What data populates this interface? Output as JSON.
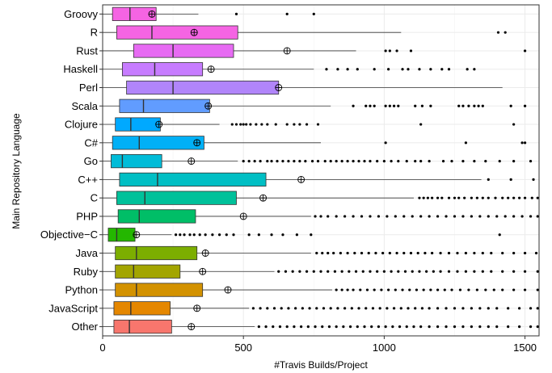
{
  "chart_data": {
    "type": "boxplot",
    "orientation": "horizontal",
    "xlabel": "#Travis Builds/Project",
    "ylabel": "Main Repository Language",
    "xlim": [
      0,
      1550
    ],
    "xticks": [
      0,
      500,
      1000,
      1500
    ],
    "grid": true,
    "legend": "none",
    "mean_marker": "circled plus",
    "categories": [
      "Groovy",
      "R",
      "Rust",
      "Haskell",
      "Perl",
      "Scala",
      "Clojure",
      "C#",
      "Go",
      "C++",
      "C",
      "PHP",
      "Objective−C",
      "Java",
      "Ruby",
      "Python",
      "JavaScript",
      "Other"
    ],
    "series": [
      {
        "category": "Groovy",
        "color": "#f564e3",
        "q1": 35,
        "median": 97,
        "q3": 190,
        "whisker_low": 0,
        "whisker_high": 340,
        "mean": 175,
        "outliers": [
          475,
          655,
          750
        ]
      },
      {
        "category": "R",
        "color": "#f564e3",
        "q1": 50,
        "median": 175,
        "q3": 480,
        "whisker_low": 0,
        "whisker_high": 1060,
        "mean": 325,
        "outliers": [
          1405,
          1430
        ]
      },
      {
        "category": "Rust",
        "color": "#e76bf3",
        "q1": 110,
        "median": 250,
        "q3": 465,
        "whisker_low": 0,
        "whisker_high": 900,
        "mean": 655,
        "outliers": [
          1005,
          1020,
          1045,
          1095,
          1500
        ]
      },
      {
        "category": "Haskell",
        "color": "#c77cff",
        "q1": 70,
        "median": 185,
        "q3": 355,
        "whisker_low": 0,
        "whisker_high": 750,
        "mean": 385,
        "outliers": [
          795,
          835,
          870,
          905,
          965,
          1015,
          1065,
          1085,
          1125,
          1165,
          1205,
          1230,
          1295,
          1320
        ]
      },
      {
        "category": "Perl",
        "color": "#b185fa",
        "q1": 85,
        "median": 250,
        "q3": 625,
        "whisker_low": 0,
        "whisker_high": 1420,
        "mean": 625,
        "outliers": []
      },
      {
        "category": "Scala",
        "color": "#619cff",
        "q1": 60,
        "median": 145,
        "q3": 380,
        "whisker_low": 0,
        "whisker_high": 810,
        "mean": 375,
        "outliers": [
          890,
          935,
          950,
          965,
          1005,
          1020,
          1035,
          1050,
          1110,
          1135,
          1165,
          1265,
          1280,
          1300,
          1320,
          1335,
          1350,
          1450,
          1500
        ]
      },
      {
        "category": "Clojure",
        "color": "#00a9ff",
        "q1": 45,
        "median": 100,
        "q3": 205,
        "whisker_low": 0,
        "whisker_high": 415,
        "mean": 200,
        "outliers": [
          460,
          475,
          490,
          500,
          510,
          525,
          545,
          565,
          585,
          615,
          655,
          680,
          700,
          725,
          765,
          1130,
          1460
        ]
      },
      {
        "category": "C#",
        "color": "#00b0f6",
        "q1": 35,
        "median": 130,
        "q3": 360,
        "whisker_low": 0,
        "whisker_high": 775,
        "mean": 335,
        "outliers": [
          1005,
          1290,
          1490,
          1500
        ]
      },
      {
        "category": "Go",
        "color": "#00bcd8",
        "q1": 30,
        "median": 70,
        "q3": 210,
        "whisker_low": 0,
        "whisker_high": 480,
        "mean": 315,
        "outliers": [
          500,
          520,
          540,
          560,
          585,
          600,
          620,
          640,
          660,
          680,
          700,
          720,
          745,
          765,
          790,
          810,
          830,
          850,
          870,
          890,
          910,
          930,
          950,
          975,
          1000,
          1025,
          1050,
          1080,
          1110,
          1130,
          1160,
          1210,
          1240,
          1280,
          1320,
          1360,
          1410,
          1460,
          1520
        ]
      },
      {
        "category": "C++",
        "color": "#00bfc4",
        "q1": 60,
        "median": 195,
        "q3": 580,
        "whisker_low": 0,
        "whisker_high": 1345,
        "mean": 705,
        "outliers": [
          1370,
          1450,
          1530
        ]
      },
      {
        "category": "C",
        "color": "#00c19a",
        "q1": 50,
        "median": 150,
        "q3": 475,
        "whisker_low": 0,
        "whisker_high": 1105,
        "mean": 570,
        "outliers": [
          1125,
          1140,
          1155,
          1170,
          1190,
          1205,
          1230,
          1250,
          1265,
          1285,
          1310,
          1330,
          1350,
          1370,
          1395,
          1420,
          1440,
          1460,
          1480,
          1500,
          1525,
          1545
        ]
      },
      {
        "category": "PHP",
        "color": "#00be67",
        "q1": 55,
        "median": 130,
        "q3": 330,
        "whisker_low": 0,
        "whisker_high": 740,
        "mean": 500,
        "outliers": [
          755,
          775,
          800,
          830,
          860,
          890,
          920,
          950,
          980,
          1010,
          1040,
          1070,
          1100,
          1130,
          1160,
          1190,
          1220,
          1250,
          1280,
          1310,
          1340,
          1370,
          1400,
          1430,
          1460,
          1490,
          1520,
          1545
        ]
      },
      {
        "category": "Objective−C",
        "color": "#24b700",
        "q1": 20,
        "median": 50,
        "q3": 115,
        "whisker_low": 0,
        "whisker_high": 245,
        "mean": 120,
        "outliers": [
          260,
          275,
          290,
          310,
          325,
          345,
          365,
          390,
          415,
          440,
          465,
          520,
          555,
          600,
          640,
          690,
          740,
          1410
        ]
      },
      {
        "category": "Java",
        "color": "#7cae00",
        "q1": 45,
        "median": 120,
        "q3": 335,
        "whisker_low": 0,
        "whisker_high": 740,
        "mean": 365,
        "outliers": [
          760,
          780,
          800,
          820,
          845,
          870,
          895,
          920,
          945,
          970,
          995,
          1020,
          1045,
          1070,
          1095,
          1120,
          1145,
          1170,
          1200,
          1230,
          1260,
          1290,
          1320,
          1350,
          1380,
          1420,
          1460,
          1500,
          1540
        ]
      },
      {
        "category": "Ruby",
        "color": "#a3a500",
        "q1": 45,
        "median": 110,
        "q3": 275,
        "whisker_low": 0,
        "whisker_high": 610,
        "mean": 355,
        "outliers": [
          625,
          650,
          675,
          700,
          725,
          750,
          775,
          800,
          825,
          850,
          875,
          900,
          925,
          950,
          975,
          1000,
          1025,
          1050,
          1075,
          1100,
          1125,
          1150,
          1175,
          1200,
          1230,
          1260,
          1290,
          1320,
          1350,
          1380,
          1420,
          1460,
          1500,
          1545
        ]
      },
      {
        "category": "Python",
        "color": "#d39200",
        "q1": 45,
        "median": 120,
        "q3": 355,
        "whisker_low": 0,
        "whisker_high": 815,
        "mean": 445,
        "outliers": [
          830,
          850,
          870,
          890,
          915,
          940,
          965,
          990,
          1015,
          1040,
          1065,
          1090,
          1115,
          1140,
          1165,
          1190,
          1215,
          1240,
          1270,
          1300,
          1330,
          1360,
          1390,
          1420,
          1460,
          1500,
          1545
        ]
      },
      {
        "category": "JavaScript",
        "color": "#e58700",
        "q1": 40,
        "median": 100,
        "q3": 240,
        "whisker_low": 0,
        "whisker_high": 520,
        "mean": 335,
        "outliers": [
          535,
          560,
          585,
          610,
          635,
          660,
          685,
          710,
          735,
          760,
          785,
          810,
          835,
          860,
          885,
          910,
          935,
          960,
          985,
          1010,
          1035,
          1060,
          1085,
          1110,
          1135,
          1160,
          1190,
          1220,
          1250,
          1280,
          1310,
          1340,
          1370,
          1400,
          1440,
          1480,
          1520,
          1545
        ]
      },
      {
        "category": "Other",
        "color": "#f8766d",
        "q1": 40,
        "median": 95,
        "q3": 245,
        "whisker_low": 0,
        "whisker_high": 540,
        "mean": 315,
        "outliers": [
          555,
          580,
          605,
          630,
          655,
          680,
          705,
          730,
          755,
          780,
          805,
          830,
          855,
          880,
          905,
          930,
          955,
          980,
          1005,
          1030,
          1055,
          1080,
          1105,
          1130,
          1160,
          1190,
          1220,
          1250,
          1280,
          1310,
          1340,
          1370,
          1400,
          1440,
          1480,
          1520,
          1545
        ]
      }
    ]
  }
}
